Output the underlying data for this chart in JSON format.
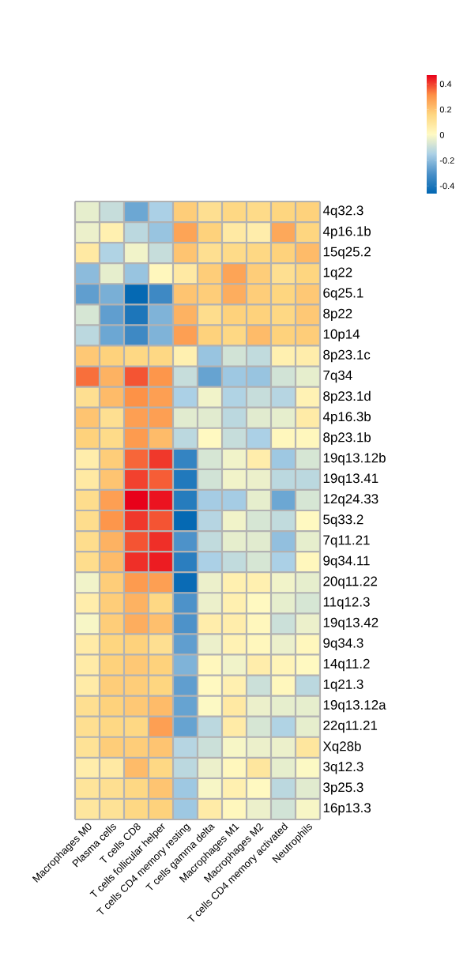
{
  "chart_data": {
    "type": "heatmap",
    "categories": [
      "Macrophages M0",
      "Plasma cells",
      "T cells CD8",
      "T cells follicular helper",
      "T cells CD4 memory resting",
      "T cells gamma delta",
      "Macrophages M1",
      "Macrophages M2",
      "T cells CD4 memory activated",
      "Neutrophils"
    ],
    "y_categories": [
      "4q32.3",
      "4p16.1b",
      "15q25.2",
      "1q22",
      "6q25.1",
      "8p22",
      "10p14",
      "8p23.1c",
      "7q34",
      "8p23.1d",
      "4p16.3b",
      "8p23.1b",
      "19q13.12b",
      "19q13.41",
      "12q24.33",
      "5q33.2",
      "7q11.21",
      "9q34.11",
      "20q11.22",
      "11q12.3",
      "19q13.42",
      "9q34.3",
      "14q11.2",
      "1q21.3",
      "19q13.12a",
      "22q11.21",
      "Xq28b",
      "3q12.3",
      "3p25.3",
      "16p13.3"
    ],
    "cells": [
      [
        -0.04,
        -0.1,
        -0.25,
        -0.15,
        0.18,
        0.12,
        0.15,
        0.14,
        0.16,
        0.17
      ],
      [
        -0.03,
        0.05,
        -0.12,
        -0.18,
        0.27,
        0.17,
        0.08,
        0.06,
        0.26,
        0.16
      ],
      [
        0.08,
        -0.14,
        -0.02,
        -0.1,
        0.2,
        0.12,
        0.14,
        0.15,
        0.17,
        0.22
      ],
      [
        -0.2,
        -0.04,
        -0.18,
        0.02,
        0.08,
        0.18,
        0.27,
        0.18,
        0.12,
        0.16
      ],
      [
        -0.27,
        -0.23,
        -0.45,
        -0.33,
        0.2,
        0.18,
        0.25,
        0.18,
        0.16,
        0.19
      ],
      [
        -0.07,
        -0.27,
        -0.4,
        -0.22,
        0.24,
        0.13,
        0.17,
        0.17,
        0.15,
        0.19
      ],
      [
        -0.12,
        -0.25,
        -0.33,
        -0.22,
        0.28,
        0.17,
        0.15,
        0.22,
        0.17,
        0.18
      ],
      [
        0.19,
        0.17,
        0.15,
        0.15,
        0.05,
        -0.18,
        -0.08,
        -0.11,
        0.05,
        0.06
      ],
      [
        0.35,
        0.24,
        0.38,
        0.3,
        -0.1,
        -0.26,
        -0.17,
        -0.18,
        -0.08,
        -0.04
      ],
      [
        0.12,
        0.22,
        0.31,
        0.28,
        -0.15,
        -0.02,
        -0.14,
        -0.1,
        -0.13,
        0.04
      ],
      [
        0.2,
        0.12,
        0.28,
        0.28,
        -0.05,
        -0.05,
        -0.12,
        -0.05,
        -0.04,
        0.07
      ],
      [
        0.17,
        0.14,
        0.29,
        0.22,
        -0.12,
        0.01,
        -0.1,
        -0.15,
        0.02,
        0.02
      ],
      [
        0.06,
        0.18,
        0.36,
        0.41,
        -0.35,
        -0.07,
        -0.02,
        0.06,
        -0.17,
        -0.07
      ],
      [
        0.08,
        0.2,
        0.4,
        0.37,
        -0.39,
        -0.08,
        -0.02,
        -0.03,
        -0.12,
        -0.12
      ],
      [
        0.13,
        0.28,
        0.47,
        0.45,
        -0.38,
        -0.16,
        -0.16,
        -0.04,
        -0.25,
        -0.07
      ],
      [
        0.13,
        0.3,
        0.41,
        0.38,
        -0.45,
        -0.13,
        -0.02,
        -0.07,
        -0.11,
        0.01
      ],
      [
        0.13,
        0.24,
        0.38,
        0.42,
        -0.3,
        -0.11,
        -0.04,
        -0.05,
        -0.19,
        -0.04
      ],
      [
        0.13,
        0.22,
        0.42,
        0.44,
        -0.37,
        -0.15,
        -0.11,
        -0.07,
        -0.15,
        0.02
      ],
      [
        -0.02,
        0.18,
        0.29,
        0.28,
        -0.44,
        -0.03,
        0.05,
        0.05,
        -0.02,
        -0.04
      ],
      [
        0.06,
        0.18,
        0.24,
        0.15,
        -0.3,
        -0.03,
        0.05,
        0.01,
        -0.04,
        -0.07
      ],
      [
        -0.01,
        0.18,
        0.25,
        0.21,
        -0.3,
        0.06,
        0.06,
        0.02,
        -0.09,
        -0.03
      ],
      [
        0.07,
        0.16,
        0.17,
        0.12,
        -0.27,
        -0.03,
        0.04,
        0.02,
        -0.03,
        0.02
      ],
      [
        0.07,
        0.17,
        0.19,
        0.17,
        -0.22,
        0.02,
        -0.02,
        0.06,
        0.03,
        0.01
      ],
      [
        0.07,
        0.18,
        0.18,
        0.16,
        -0.27,
        0.01,
        0.05,
        -0.09,
        0.02,
        -0.12
      ],
      [
        0.12,
        0.17,
        0.19,
        0.22,
        -0.26,
        0.0,
        0.08,
        -0.03,
        -0.04,
        -0.04
      ],
      [
        0.12,
        0.15,
        0.15,
        0.28,
        -0.26,
        -0.12,
        0.07,
        -0.07,
        -0.14,
        -0.04
      ],
      [
        0.11,
        0.18,
        0.18,
        0.2,
        -0.13,
        -0.09,
        -0.01,
        -0.03,
        -0.03,
        0.09
      ],
      [
        0.06,
        0.08,
        0.22,
        0.15,
        -0.12,
        -0.03,
        0.02,
        0.09,
        -0.04,
        0.0
      ],
      [
        0.1,
        0.12,
        0.15,
        0.2,
        -0.17,
        -0.01,
        0.05,
        0.01,
        -0.12,
        -0.05
      ],
      [
        0.09,
        0.11,
        0.15,
        0.17,
        -0.17,
        0.07,
        0.02,
        -0.03,
        -0.08,
        -0.01
      ]
    ],
    "clim": [
      -0.46,
      0.47
    ],
    "cticks": [
      -0.4,
      -0.2,
      0,
      0.2,
      0.4
    ]
  }
}
